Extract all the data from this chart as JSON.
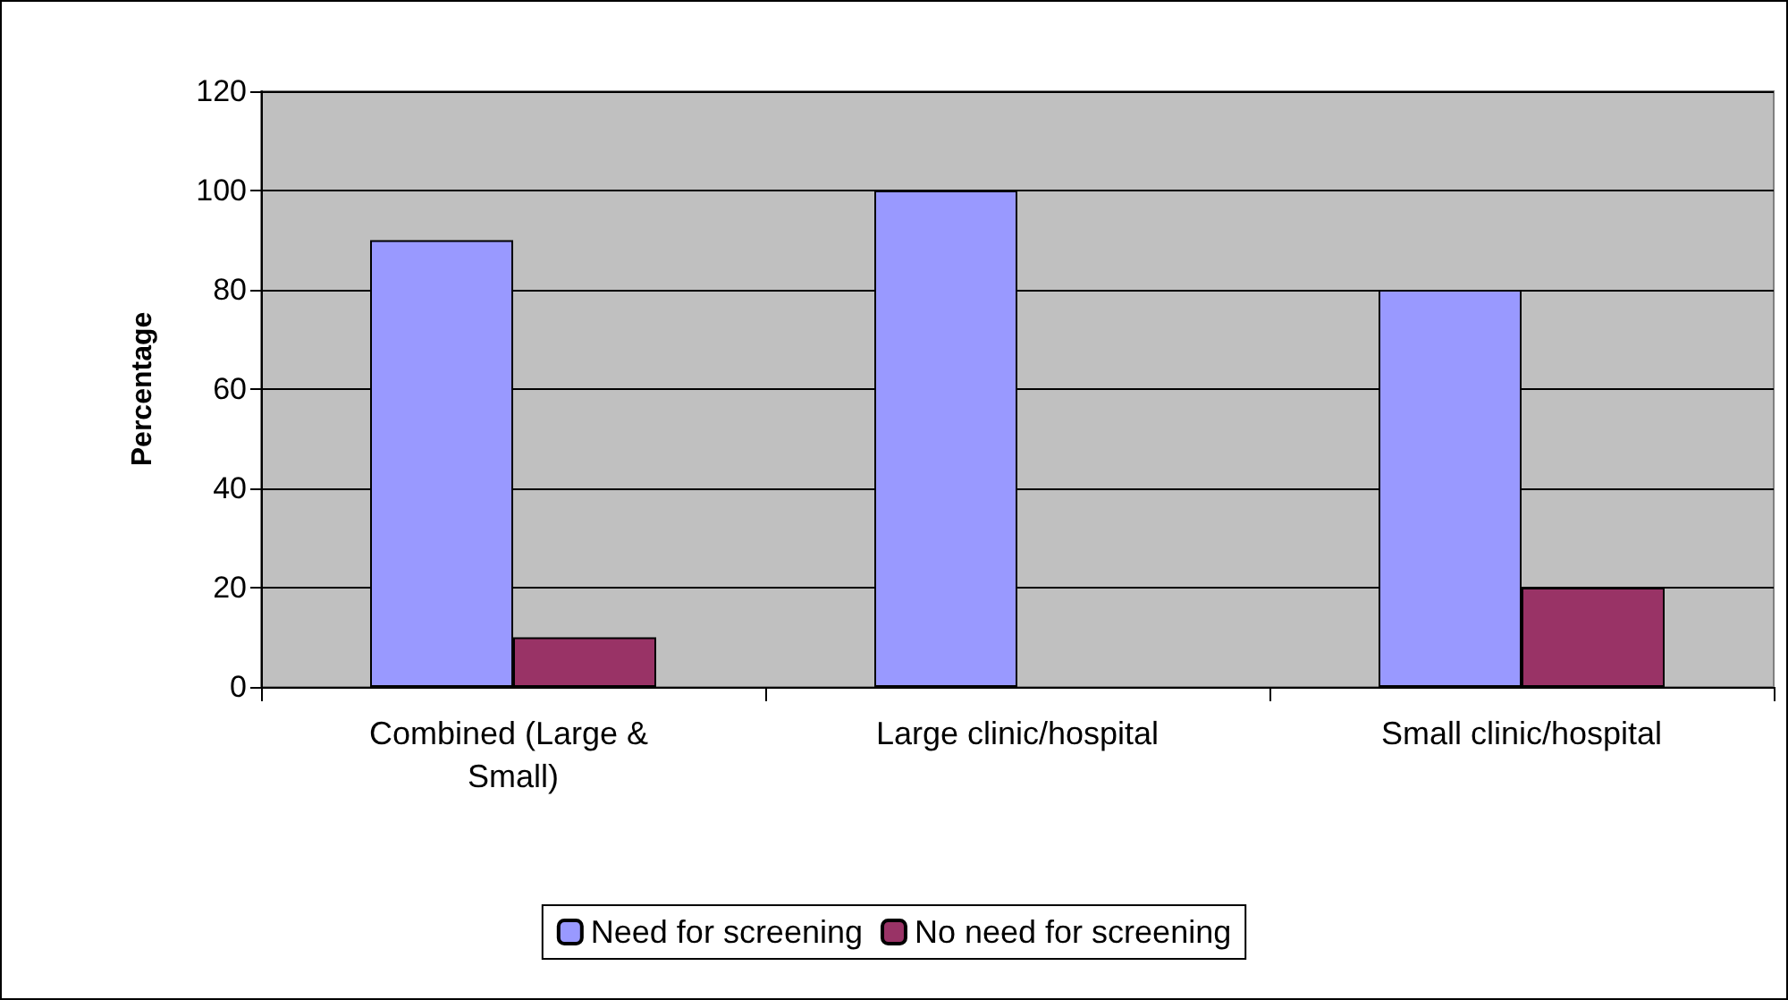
{
  "chart_data": {
    "type": "bar",
    "ylabel": "Percentage",
    "categories": [
      "Combined (Large & Small)",
      "Large clinic/hospital",
      "Small clinic/hospital"
    ],
    "series": [
      {
        "name": "Need for screening",
        "color": "#9999ff",
        "values": [
          90,
          100,
          80
        ]
      },
      {
        "name": "No need for screening",
        "color": "#993366",
        "values": [
          10,
          null,
          20
        ]
      }
    ],
    "ylim": [
      0,
      120
    ],
    "yticks": [
      0,
      20,
      40,
      60,
      80,
      100,
      120
    ],
    "grid": "y",
    "legend": "bottom"
  }
}
